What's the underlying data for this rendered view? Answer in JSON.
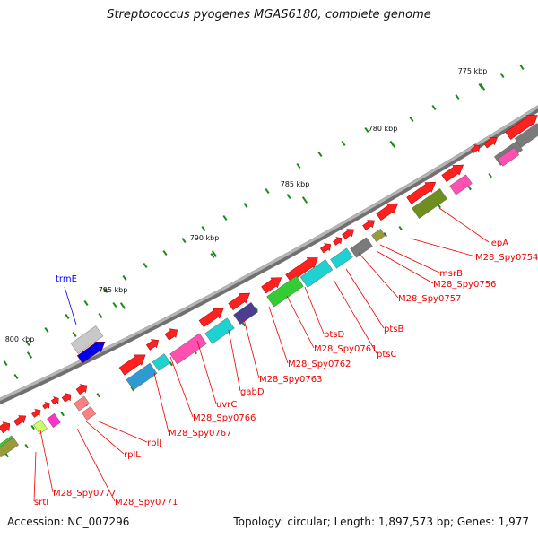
{
  "title": "Streptococcus pyogenes MGAS6180, complete genome",
  "footer": {
    "accession": "Accession: NC_007296",
    "topology": "Topology: circular; Length: 1,897,573 bp; Genes: 1,977"
  },
  "scale_ticks": [
    "775 kbp",
    "780 kbp",
    "785 kbp",
    "790 kbp",
    "795 kbp",
    "800 kbp"
  ],
  "gene_labels": [
    {
      "text": "trmE",
      "color": "#0000ff"
    },
    {
      "text": "lepA",
      "color": "#ee0000"
    },
    {
      "text": "M28_Spy0754",
      "color": "#ee0000"
    },
    {
      "text": "msrB",
      "color": "#ee0000"
    },
    {
      "text": "M28_Spy0756",
      "color": "#ee0000"
    },
    {
      "text": "M28_Spy0757",
      "color": "#ee0000"
    },
    {
      "text": "ptsB",
      "color": "#ee0000"
    },
    {
      "text": "ptsC",
      "color": "#ee0000"
    },
    {
      "text": "ptsD",
      "color": "#ee0000"
    },
    {
      "text": "M28_Spy0761",
      "color": "#ee0000"
    },
    {
      "text": "M28_Spy0762",
      "color": "#ee0000"
    },
    {
      "text": "M28_Spy0763",
      "color": "#ee0000"
    },
    {
      "text": "gabD",
      "color": "#ee0000"
    },
    {
      "text": "uvrC",
      "color": "#ee0000"
    },
    {
      "text": "M28_Spy0766",
      "color": "#ee0000"
    },
    {
      "text": "M28_Spy0767",
      "color": "#ee0000"
    },
    {
      "text": "rplJ",
      "color": "#ee0000"
    },
    {
      "text": "rplL",
      "color": "#ee0000"
    },
    {
      "text": "M28_Spy0771",
      "color": "#ee0000"
    },
    {
      "text": "M28_Spy0777",
      "color": "#ee0000"
    },
    {
      "text": "srtI",
      "color": "#ee0000"
    }
  ],
  "colors": {
    "forward_gene": "#ff2020",
    "backbone": "#909090",
    "gc_skew": "#1a8a1a",
    "label_line_red": "#ee0000",
    "label_line_blue": "#0000ff",
    "cog_colors": [
      "#2d9bd2",
      "#1fd2d2",
      "#ff4fb0",
      "#33cc33",
      "#4b3d8f",
      "#7a7a7a",
      "#9a9a3c",
      "#6e8f1f",
      "#ff8080",
      "#ccff66",
      "#ff33cc",
      "#b0b0b0",
      "#0000ee"
    ]
  }
}
